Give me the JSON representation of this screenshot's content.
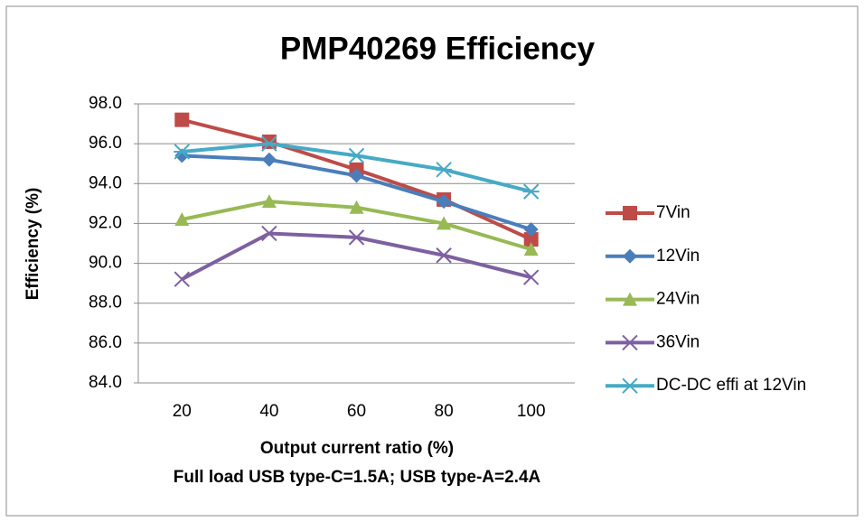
{
  "chart_data": {
    "type": "line",
    "title": "PMP40269 Efficiency",
    "x_label": "Output current ratio (%)",
    "x_label_note": "Full load USB type-C=1.5A; USB type-A=2.4A",
    "y_label": "Efficiency (%)",
    "categories": [
      "20",
      "40",
      "60",
      "80",
      "100"
    ],
    "series": [
      {
        "name": "7Vin",
        "color": "#be4b48",
        "marker": "square",
        "values": [
          97.2,
          96.1,
          94.7,
          93.2,
          91.2
        ]
      },
      {
        "name": "12Vin",
        "color": "#4a7ebb",
        "marker": "diamond",
        "values": [
          95.4,
          95.2,
          94.4,
          93.1,
          91.7
        ]
      },
      {
        "name": "24Vin",
        "color": "#98b954",
        "marker": "triangle",
        "values": [
          92.2,
          93.1,
          92.8,
          92.0,
          90.7
        ]
      },
      {
        "name": "36Vin",
        "color": "#7d60a0",
        "marker": "x",
        "values": [
          89.2,
          91.5,
          91.3,
          90.4,
          89.3
        ]
      },
      {
        "name": "DC-DC effi at 12Vin",
        "color": "#46aac5",
        "marker": "star",
        "values": [
          95.6,
          96.0,
          95.4,
          94.7,
          93.6
        ]
      }
    ],
    "ylim": [
      84,
      98
    ],
    "yticks": [
      {
        "value": 84,
        "label": "84.0"
      },
      {
        "value": 86,
        "label": "86.0"
      },
      {
        "value": 88,
        "label": "88.0"
      },
      {
        "value": 90,
        "label": "90.0"
      },
      {
        "value": 92,
        "label": "92.0"
      },
      {
        "value": 94,
        "label": "94.0"
      },
      {
        "value": 96,
        "label": "96.0"
      },
      {
        "value": 98,
        "label": "98.0"
      }
    ],
    "grid": true,
    "legend": "right"
  }
}
